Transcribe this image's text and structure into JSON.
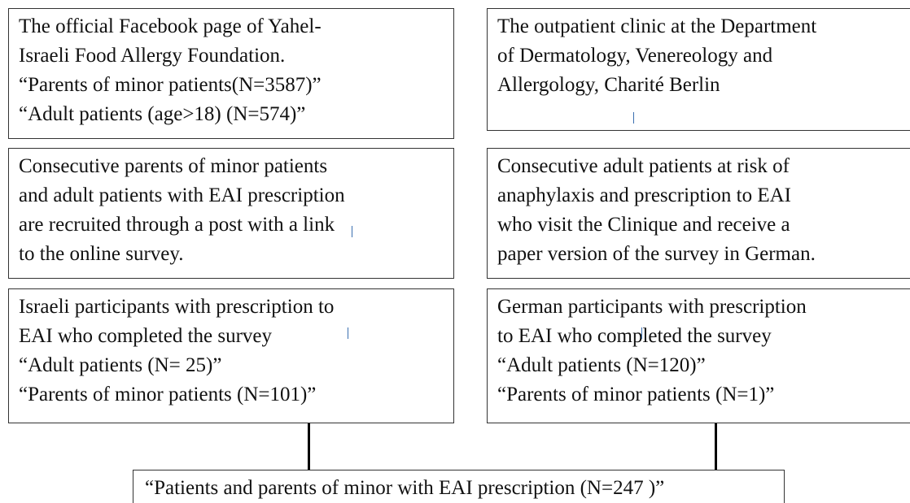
{
  "nodes": [
    {
      "lines": [
        "The official Facebook page of Yahel-",
        "Israeli Food Allergy Foundation.",
        "“Parents of minor patients(N=3587)”",
        "“Adult patients (age>18) (N=574)”"
      ]
    },
    {
      "lines": [
        "The outpatient clinic at the Department",
        "of Dermatology, Venereology and",
        "Allergology, Charité Berlin"
      ]
    },
    {
      "lines": [
        "Consecutive parents of minor patients",
        "and adult patients with EAI prescription",
        "are recruited through a post with a link",
        "to the online survey."
      ]
    },
    {
      "lines": [
        "Consecutive adult patients at risk of",
        "anaphylaxis and prescription to EAI",
        "who visit the Clinique and receive a",
        "paper version of the survey in German."
      ]
    },
    {
      "lines": [
        "Israeli participants with prescription to",
        "EAI who completed the survey",
        "“Adult patients (N= 25)”",
        "“Parents of minor patients (N=101)”"
      ]
    },
    {
      "lines": [
        "German participants with prescription",
        "to EAI who completed the survey",
        "“Adult patients (N=120)”",
        "“Parents of minor patients (N=1)”"
      ]
    },
    {
      "lines": [
        "“Patients and parents of minor with EAI prescription (N=247 )”"
      ]
    }
  ]
}
